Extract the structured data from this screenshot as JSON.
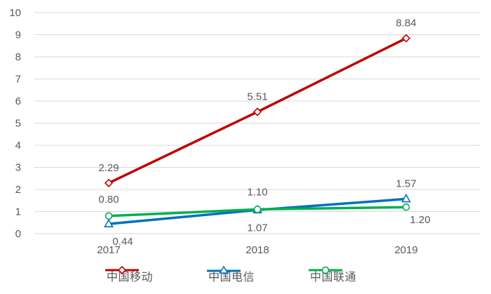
{
  "chart_data": {
    "type": "line",
    "title": "",
    "xlabel": "",
    "ylabel": "",
    "categories": [
      "2017",
      "2018",
      "2019"
    ],
    "ylim": [
      0,
      10
    ],
    "yticks": [
      "0",
      "1",
      "2",
      "3",
      "4",
      "5",
      "6",
      "7",
      "8",
      "9",
      "10"
    ],
    "grid": true,
    "legend_position": "bottom",
    "series": [
      {
        "name": "中国移动",
        "values": [
          2.29,
          5.51,
          8.84
        ],
        "labels": [
          "2.29",
          "5.51",
          "8.84"
        ],
        "color": "#C00000",
        "marker": "diamond"
      },
      {
        "name": "中国电信",
        "values": [
          0.44,
          1.07,
          1.57
        ],
        "labels": [
          "0.44",
          "1.07",
          "1.57"
        ],
        "color": "#0070C0",
        "marker": "triangle"
      },
      {
        "name": "中国联通",
        "values": [
          0.8,
          1.1,
          1.2
        ],
        "labels": [
          "0.80",
          "1.10",
          "1.20"
        ],
        "color": "#00B050",
        "marker": "circle"
      }
    ]
  },
  "legend": {
    "items": [
      {
        "label": "中国移动",
        "icon": "diamond-marker-icon"
      },
      {
        "label": "中国电信",
        "icon": "triangle-marker-icon"
      },
      {
        "label": "中国联通",
        "icon": "circle-marker-icon"
      }
    ]
  }
}
